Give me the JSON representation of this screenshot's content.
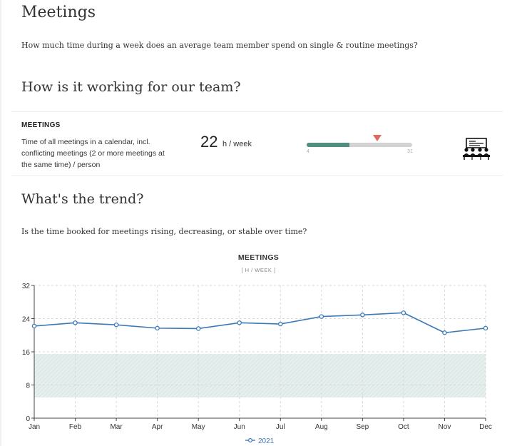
{
  "page": {
    "title": "Meetings",
    "intro": "How much time during a week does an average team member spend on single & routine meetings?"
  },
  "team_section": {
    "heading": "How is it working for our team?",
    "metric": {
      "name": "MEETINGS",
      "description": "Time of all meetings in a calendar, incl. conflicting meetings (2 or more meetings at the same time) / person",
      "value": "22",
      "unit": "h / week",
      "gauge": {
        "min_label": "4",
        "max_label": "31",
        "min": 4,
        "max": 31,
        "fill_to": 15,
        "marker_value": 22,
        "fill_color": "#4e8f82",
        "marker_color": "#e0685d",
        "track_color": "#d3d3d3"
      },
      "icon": "meeting-people-icon"
    }
  },
  "trend_section": {
    "heading": "What's the trend?",
    "question": "Is the time booked for meetings rising, decreasing, or stable over time?"
  },
  "chart_data": {
    "type": "line",
    "title": "MEETINGS",
    "subtitle": "[ H / WEEK ]",
    "categories": [
      "Jan",
      "Feb",
      "Mar",
      "Apr",
      "May",
      "Jun",
      "Jul",
      "Aug",
      "Sep",
      "Oct",
      "Nov",
      "Dec"
    ],
    "series": [
      {
        "name": "2021",
        "color": "#3d7ab5",
        "values": [
          22.2,
          23.0,
          22.5,
          21.7,
          21.6,
          23.0,
          22.7,
          24.5,
          24.9,
          25.4,
          20.6,
          21.7
        ]
      }
    ],
    "band": {
      "from": 5,
      "to": 15.5,
      "color": "#dde9e6"
    },
    "ylim": [
      0,
      32
    ],
    "yticks": [
      0,
      8,
      16,
      24,
      32
    ],
    "grid": true,
    "legend": "bottom-center"
  }
}
